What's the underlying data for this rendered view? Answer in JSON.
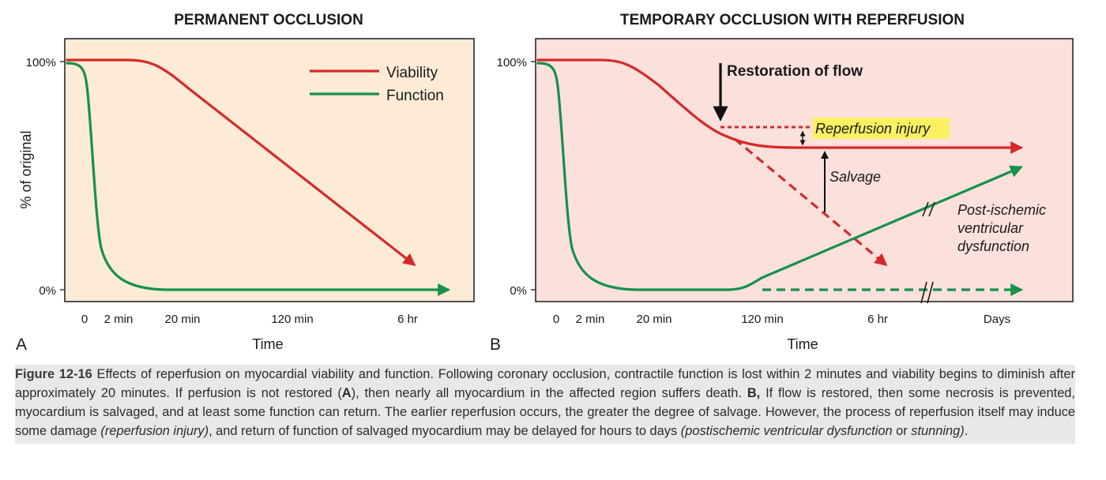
{
  "colors": {
    "viability": "#d42a2a",
    "function": "#16914a",
    "panel_a_bg": "#fdebd6",
    "panel_b_bg": "#fbe0dc",
    "highlight": "#fbf062"
  },
  "chart_data": [
    {
      "type": "line",
      "panel_letter": "A",
      "title": "PERMANENT OCCLUSION",
      "ylabel": "% of original",
      "xlabel": "Time",
      "x_tick_labels": [
        "0",
        "2 min",
        "20 min",
        "120 min",
        "6 hr"
      ],
      "y_tick_labels": [
        "100%",
        "0%"
      ],
      "ylim": [
        0,
        100
      ],
      "x_scale": "non-linear (schematic)",
      "legend": {
        "position": "top-right",
        "entries": [
          "Viability",
          "Function"
        ]
      },
      "series": [
        {
          "name": "Viability",
          "color": "#d42a2a",
          "points": [
            [
              "-0.1",
              100
            ],
            [
              "20 min",
              100
            ],
            [
              "6 hr",
              10
            ]
          ],
          "end": "arrow"
        },
        {
          "name": "Function",
          "color": "#16914a",
          "points": [
            [
              "-0.1",
              100
            ],
            [
              "0",
              92
            ],
            [
              "2 min",
              18
            ],
            [
              "20 min",
              0
            ],
            [
              "beyond 6 hr",
              0
            ]
          ],
          "end": "arrow"
        }
      ],
      "annotations": []
    },
    {
      "type": "line",
      "panel_letter": "B",
      "title": "TEMPORARY OCCLUSION WITH REPERFUSION",
      "xlabel": "Time",
      "x_tick_labels": [
        "0",
        "2 min",
        "20 min",
        "120 min",
        "6 hr",
        "Days"
      ],
      "y_tick_labels": [
        "100%",
        "0%"
      ],
      "ylim": [
        0,
        100
      ],
      "x_scale": "non-linear (schematic), axis break before Days",
      "series": [
        {
          "name": "Viability",
          "color": "#d42a2a",
          "style": "solid",
          "points": [
            [
              "-0.1",
              100
            ],
            [
              "20 min",
              100
            ],
            [
              "restoration",
              71
            ],
            [
              "Days",
              62
            ]
          ],
          "end": "arrow"
        },
        {
          "name": "Viability without reperfusion",
          "color": "#d42a2a",
          "style": "dashed",
          "points": [
            [
              "restoration",
              70
            ],
            [
              "6 hr",
              10
            ]
          ],
          "end": "arrow"
        },
        {
          "name": "Reperfusion injury level",
          "color": "#d42a2a",
          "style": "dotted",
          "points": [
            [
              "restoration",
              71
            ],
            [
              "reperfusion label",
              71
            ]
          ]
        },
        {
          "name": "Function",
          "color": "#16914a",
          "style": "solid",
          "points": [
            [
              "-0.1",
              100
            ],
            [
              "2 min",
              18
            ],
            [
              "20 min",
              0
            ],
            [
              "120 min",
              0
            ],
            [
              "Days",
              54
            ]
          ],
          "end": "arrow"
        },
        {
          "name": "Function without recovery",
          "color": "#16914a",
          "style": "dashed",
          "points": [
            [
              "120 min",
              0
            ],
            [
              "Days",
              0
            ]
          ],
          "end": "arrow"
        }
      ],
      "annotations": [
        {
          "text": "Restoration of flow",
          "style": "bold",
          "arrow": "down"
        },
        {
          "text": "Reperfusion injury",
          "style": "italic-highlighted"
        },
        {
          "text": "Salvage",
          "style": "italic"
        },
        {
          "text_lines": [
            "Post-ischemic",
            "ventricular",
            "dysfunction"
          ],
          "style": "italic"
        }
      ]
    }
  ],
  "caption": {
    "label": "Figure 12-16",
    "segments": [
      {
        "text": " Effects of reperfusion on myocardial viability and function. Following coronary occlusion, contractile function is lost within 2 minutes and viability begins to diminish after approximately 20 minutes. If perfusion is not restored (",
        "style": "normal"
      },
      {
        "text": "A",
        "style": "bold"
      },
      {
        "text": "), then nearly all myocardium in the affected region suffers death. ",
        "style": "normal"
      },
      {
        "text": "B,",
        "style": "bold"
      },
      {
        "text": " If flow is restored, then some necrosis is prevented, myocardium is salvaged, and at least some function can return. The earlier reperfusion occurs, the greater the degree of salvage. However, the process of reperfusion itself may induce some damage ",
        "style": "normal"
      },
      {
        "text": "(reperfusion injury)",
        "style": "italic"
      },
      {
        "text": ", and return of function of salvaged myocardium may be delayed for hours to days ",
        "style": "normal"
      },
      {
        "text": "(postischemic ventricular dysfunction",
        "style": "italic"
      },
      {
        "text": " or ",
        "style": "normal"
      },
      {
        "text": "stunning)",
        "style": "italic"
      },
      {
        "text": ".",
        "style": "normal"
      }
    ]
  }
}
